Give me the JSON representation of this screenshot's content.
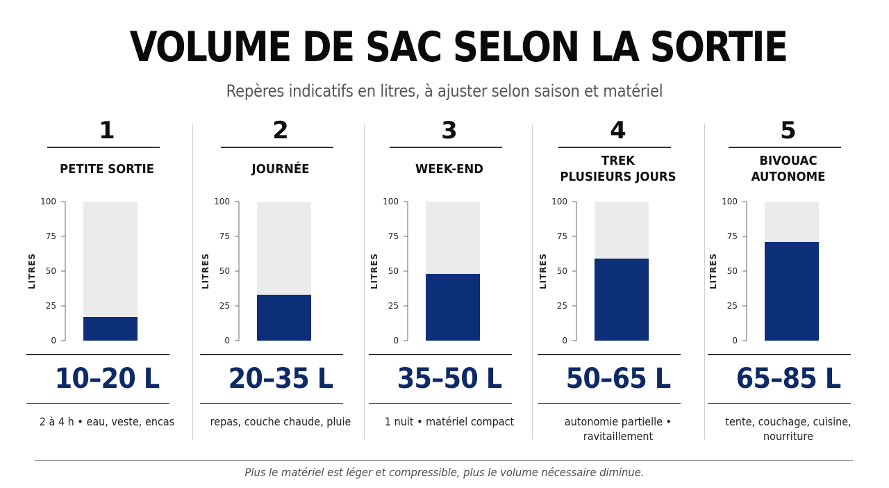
{
  "title": "VOLUME DE SAC SELON LA SORTIE",
  "subtitle": "Repères indicatifs en litres, à ajuster selon saison et matériel",
  "footer": "Plus le matériel est léger et compressible, plus le volume nécessaire diminue.",
  "colors": {
    "bar": "#0d2f7a",
    "track": "#ebebeb",
    "range_text": "#0d2a66"
  },
  "chart_data": {
    "type": "bar",
    "ylabel": "LITRES",
    "ylim": [
      0,
      100
    ],
    "yticks": [
      "0",
      "25",
      "50",
      "75",
      "100"
    ],
    "categories": [
      {
        "num": "1",
        "name": "PETITE SORTIE",
        "value": 17,
        "range": "10–20 L",
        "desc": "2 à 4 h • eau, veste, encas"
      },
      {
        "num": "2",
        "name": "JOURNÉE",
        "value": 33,
        "range": "20–35 L",
        "desc": "repas, couche chaude, pluie"
      },
      {
        "num": "3",
        "name": "WEEK-END",
        "value": 48,
        "range": "35–50 L",
        "desc": "1 nuit • matériel compact"
      },
      {
        "num": "4",
        "name": "TREK\nPLUSIEURS JOURS",
        "value": 59,
        "range": "50–65 L",
        "desc": "autonomie partielle •\nravitaillement"
      },
      {
        "num": "5",
        "name": "BIVOUAC\nAUTONOME",
        "value": 71,
        "range": "65–85 L",
        "desc": "tente, couchage, cuisine,\nnourriture"
      }
    ]
  }
}
